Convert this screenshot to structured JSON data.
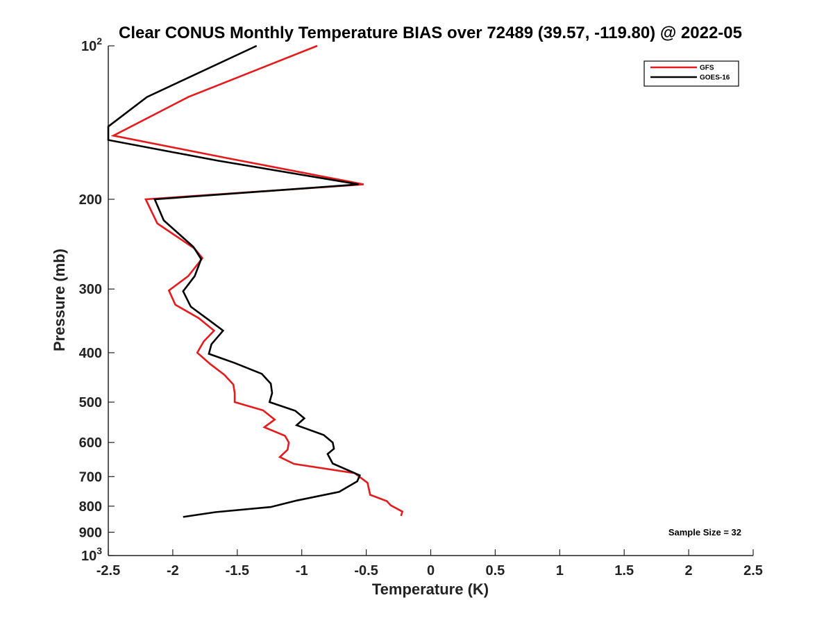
{
  "chart_data": {
    "type": "line",
    "title": "Clear CONUS Monthly Temperature BIAS over 72489 (39.57, -119.80) @ 2022-05",
    "xlabel": "Temperature (K)",
    "ylabel": "Pressure (mb)",
    "xlim": [
      -2.5,
      2.5
    ],
    "ylim": [
      100,
      1000
    ],
    "yscale": "log",
    "y_reversed": true,
    "x_ticks": [
      -2.5,
      -2,
      -1.5,
      -1,
      -0.5,
      0,
      0.5,
      1,
      1.5,
      2,
      2.5
    ],
    "x_tick_labels": [
      "-2.5",
      "-2",
      "-1.5",
      "-1",
      "-0.5",
      "0",
      "0.5",
      "1",
      "1.5",
      "2",
      "2.5"
    ],
    "y_ticks": [
      {
        "value": 100,
        "base": "10",
        "exp": "2"
      },
      {
        "value": 200,
        "label": "200"
      },
      {
        "value": 300,
        "label": "300"
      },
      {
        "value": 400,
        "label": "400"
      },
      {
        "value": 500,
        "label": "500"
      },
      {
        "value": 600,
        "label": "600"
      },
      {
        "value": 700,
        "label": "700"
      },
      {
        "value": 800,
        "label": "800"
      },
      {
        "value": 900,
        "label": "900"
      },
      {
        "value": 1000,
        "base": "10",
        "exp": "3"
      }
    ],
    "legend_position": "top-right",
    "annotation": "Sample Size = 32",
    "series": [
      {
        "name": "GFS",
        "color": "#e41a1c",
        "points": [
          {
            "t": -0.88,
            "p": 100
          },
          {
            "t": -1.88,
            "p": 126
          },
          {
            "t": -2.46,
            "p": 150
          },
          {
            "t": -1.58,
            "p": 166
          },
          {
            "t": -0.52,
            "p": 187
          },
          {
            "t": -2.21,
            "p": 200
          },
          {
            "t": -2.12,
            "p": 223
          },
          {
            "t": -1.83,
            "p": 250
          },
          {
            "t": -1.77,
            "p": 261
          },
          {
            "t": -1.88,
            "p": 283
          },
          {
            "t": -2.03,
            "p": 302
          },
          {
            "t": -1.98,
            "p": 322
          },
          {
            "t": -1.8,
            "p": 342
          },
          {
            "t": -1.68,
            "p": 362
          },
          {
            "t": -1.76,
            "p": 380
          },
          {
            "t": -1.81,
            "p": 400
          },
          {
            "t": -1.71,
            "p": 421
          },
          {
            "t": -1.6,
            "p": 442
          },
          {
            "t": -1.53,
            "p": 462
          },
          {
            "t": -1.52,
            "p": 480
          },
          {
            "t": -1.52,
            "p": 500
          },
          {
            "t": -1.3,
            "p": 519
          },
          {
            "t": -1.21,
            "p": 541
          },
          {
            "t": -1.29,
            "p": 560
          },
          {
            "t": -1.13,
            "p": 582
          },
          {
            "t": -1.1,
            "p": 600
          },
          {
            "t": -1.11,
            "p": 620
          },
          {
            "t": -1.17,
            "p": 641
          },
          {
            "t": -1.06,
            "p": 661
          },
          {
            "t": -0.59,
            "p": 689
          },
          {
            "t": -0.49,
            "p": 720
          },
          {
            "t": -0.47,
            "p": 760
          },
          {
            "t": -0.34,
            "p": 782
          },
          {
            "t": -0.31,
            "p": 797
          },
          {
            "t": -0.22,
            "p": 820
          },
          {
            "t": -0.23,
            "p": 836
          }
        ]
      },
      {
        "name": "GOES-16",
        "color": "#000000",
        "points": [
          {
            "t": -1.35,
            "p": 100
          },
          {
            "t": -2.2,
            "p": 126
          },
          {
            "t": -2.5,
            "p": 144
          },
          {
            "t": -2.5,
            "p": 153
          },
          {
            "t": -1.65,
            "p": 168
          },
          {
            "t": -0.56,
            "p": 187
          },
          {
            "t": -2.14,
            "p": 200
          },
          {
            "t": -2.07,
            "p": 220
          },
          {
            "t": -1.84,
            "p": 248
          },
          {
            "t": -1.78,
            "p": 262
          },
          {
            "t": -1.83,
            "p": 283
          },
          {
            "t": -1.92,
            "p": 303
          },
          {
            "t": -1.86,
            "p": 325
          },
          {
            "t": -1.72,
            "p": 345
          },
          {
            "t": -1.61,
            "p": 362
          },
          {
            "t": -1.7,
            "p": 385
          },
          {
            "t": -1.72,
            "p": 402
          },
          {
            "t": -1.52,
            "p": 419
          },
          {
            "t": -1.31,
            "p": 440
          },
          {
            "t": -1.24,
            "p": 460
          },
          {
            "t": -1.23,
            "p": 480
          },
          {
            "t": -1.25,
            "p": 500
          },
          {
            "t": -1.05,
            "p": 520
          },
          {
            "t": -0.98,
            "p": 538
          },
          {
            "t": -1.04,
            "p": 555
          },
          {
            "t": -0.83,
            "p": 580
          },
          {
            "t": -0.76,
            "p": 600
          },
          {
            "t": -0.75,
            "p": 617
          },
          {
            "t": -0.8,
            "p": 632
          },
          {
            "t": -0.76,
            "p": 660
          },
          {
            "t": -0.55,
            "p": 696
          },
          {
            "t": -0.57,
            "p": 715
          },
          {
            "t": -0.71,
            "p": 750
          },
          {
            "t": -1.04,
            "p": 780
          },
          {
            "t": -1.24,
            "p": 803
          },
          {
            "t": -1.67,
            "p": 822
          },
          {
            "t": -1.92,
            "p": 840
          }
        ]
      }
    ]
  }
}
